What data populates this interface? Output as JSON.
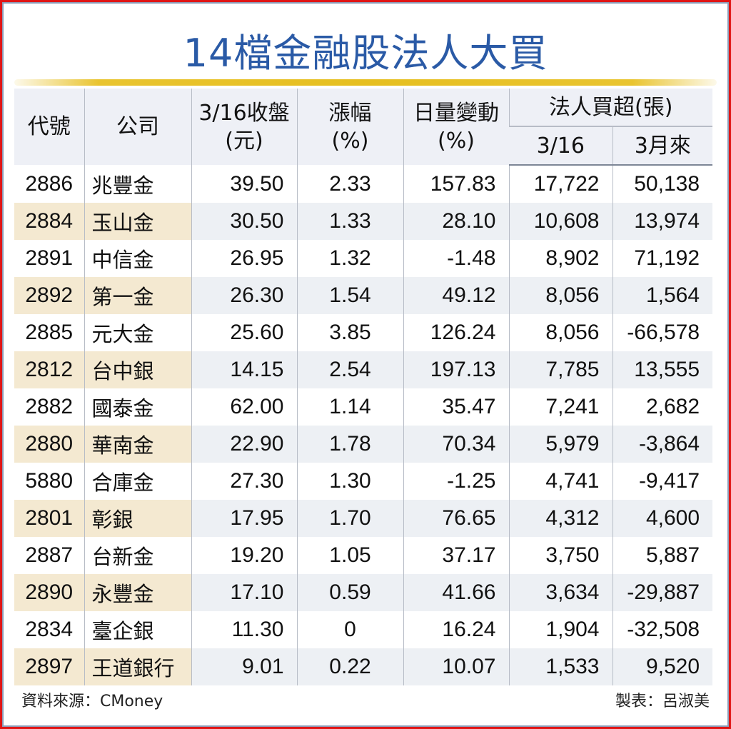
{
  "title": "14檔金融股法人大買",
  "colors": {
    "frame": "#e01515",
    "title": "#2a5aa6",
    "accent_bar": "#e6bf20",
    "header_bg": "#eef0f6",
    "alt_row_code_bg": "#f4e9d1",
    "alt_row_bg": "#edf0f4"
  },
  "table": {
    "headers": {
      "code": "代號",
      "company": "公司",
      "close_line1": "3/16收盤",
      "close_line2": "(元)",
      "change_line1": "漲幅",
      "change_line2": "(%)",
      "volume_line1": "日量變動",
      "volume_line2": "(%)",
      "inst_group": "法人買超(張)",
      "inst_day": "3/16",
      "inst_month": "3月來"
    },
    "rows": [
      {
        "code": "2886",
        "company": "兆豐金",
        "close": "39.50",
        "change": "2.33",
        "volume": "157.83",
        "net_day": "17,722",
        "net_month": "50,138"
      },
      {
        "code": "2884",
        "company": "玉山金",
        "close": "30.50",
        "change": "1.33",
        "volume": "28.10",
        "net_day": "10,608",
        "net_month": "13,974"
      },
      {
        "code": "2891",
        "company": "中信金",
        "close": "26.95",
        "change": "1.32",
        "volume": "-1.48",
        "net_day": "8,902",
        "net_month": "71,192"
      },
      {
        "code": "2892",
        "company": "第一金",
        "close": "26.30",
        "change": "1.54",
        "volume": "49.12",
        "net_day": "8,056",
        "net_month": "1,564"
      },
      {
        "code": "2885",
        "company": "元大金",
        "close": "25.60",
        "change": "3.85",
        "volume": "126.24",
        "net_day": "8,056",
        "net_month": "-66,578"
      },
      {
        "code": "2812",
        "company": "台中銀",
        "close": "14.15",
        "change": "2.54",
        "volume": "197.13",
        "net_day": "7,785",
        "net_month": "13,555"
      },
      {
        "code": "2882",
        "company": "國泰金",
        "close": "62.00",
        "change": "1.14",
        "volume": "35.47",
        "net_day": "7,241",
        "net_month": "2,682"
      },
      {
        "code": "2880",
        "company": "華南金",
        "close": "22.90",
        "change": "1.78",
        "volume": "70.34",
        "net_day": "5,979",
        "net_month": "-3,864"
      },
      {
        "code": "5880",
        "company": "合庫金",
        "close": "27.30",
        "change": "1.30",
        "volume": "-1.25",
        "net_day": "4,741",
        "net_month": "-9,417"
      },
      {
        "code": "2801",
        "company": "彰銀",
        "close": "17.95",
        "change": "1.70",
        "volume": "76.65",
        "net_day": "4,312",
        "net_month": "4,600"
      },
      {
        "code": "2887",
        "company": "台新金",
        "close": "19.20",
        "change": "1.05",
        "volume": "37.17",
        "net_day": "3,750",
        "net_month": "5,887"
      },
      {
        "code": "2890",
        "company": "永豐金",
        "close": "17.10",
        "change": "0.59",
        "volume": "41.66",
        "net_day": "3,634",
        "net_month": "-29,887"
      },
      {
        "code": "2834",
        "company": "臺企銀",
        "close": "11.30",
        "change": "0",
        "volume": "16.24",
        "net_day": "1,904",
        "net_month": "-32,508"
      },
      {
        "code": "2897",
        "company": "王道銀行",
        "close": "9.01",
        "change": "0.22",
        "volume": "10.07",
        "net_day": "1,533",
        "net_month": "9,520"
      }
    ]
  },
  "footer": {
    "source": "資料來源：CMoney",
    "author": "製表：呂淑美"
  }
}
